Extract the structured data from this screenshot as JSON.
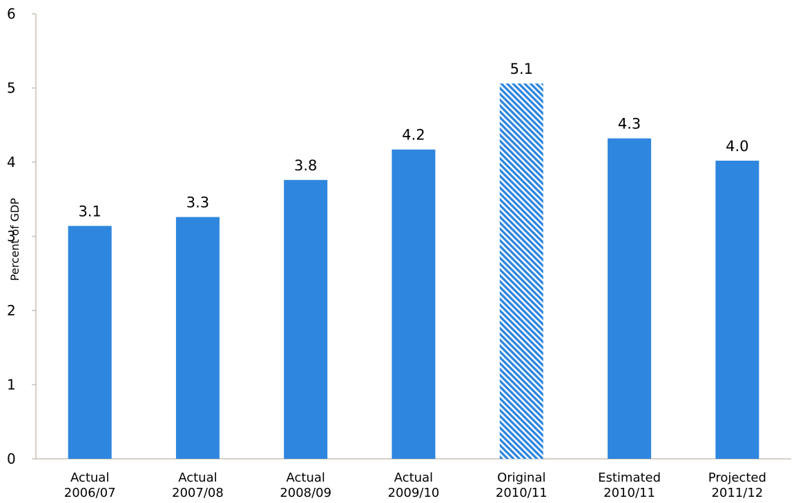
{
  "chart_data": {
    "type": "bar",
    "title": "",
    "xlabel": "",
    "ylabel": "Percent of GDP",
    "ylim": [
      0,
      6
    ],
    "yticks": [
      "0",
      "1",
      "2",
      "3",
      "4",
      "5",
      "6"
    ],
    "grid": false,
    "legend": "none",
    "categories": [
      [
        "Actual",
        "2006/07"
      ],
      [
        "Actual",
        "2007/08"
      ],
      [
        "Actual",
        "2008/09"
      ],
      [
        "Actual",
        "2009/10"
      ],
      [
        "Original",
        "2010/11"
      ],
      [
        "Estimated",
        "2010/11"
      ],
      [
        "Projected",
        "2011/12"
      ]
    ],
    "values": [
      3.14,
      3.26,
      3.76,
      4.17,
      5.06,
      4.32,
      4.02
    ],
    "value_labels": [
      "3.1",
      "3.3",
      "3.8",
      "4.2",
      "5.1",
      "4.3",
      "4.0"
    ],
    "bar_styles": [
      "solid",
      "solid",
      "solid",
      "solid",
      "hatched",
      "solid",
      "solid"
    ],
    "colors": {
      "bar": "#2e86de",
      "axis": "#c8bfb4",
      "hatch_bg": "#ffffff"
    }
  }
}
